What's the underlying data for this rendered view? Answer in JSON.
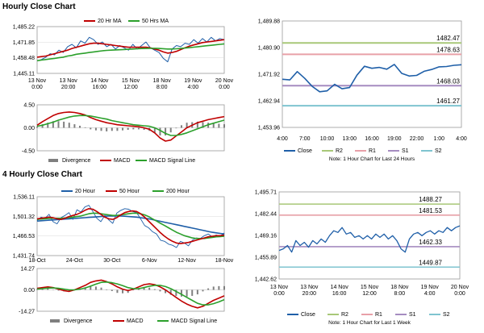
{
  "sections": {
    "hourly_title": "Hourly Close Chart",
    "four_hourly_title": "4 Hourly Close Chart"
  },
  "chart_data": [
    {
      "id": "hourly_price",
      "type": "line",
      "y_ticks": [
        "1,485.22",
        "1,471.85",
        "1,458.48",
        "1,445.11"
      ],
      "ylim": [
        1445.11,
        1485.22
      ],
      "x_ticks": [
        [
          "13 Nov",
          "0:00"
        ],
        [
          "13 Nov",
          "20:00"
        ],
        [
          "14 Nov",
          "16:00"
        ],
        [
          "15 Nov",
          "12:00"
        ],
        [
          "18 Nov",
          "8:00"
        ],
        [
          "19 Nov",
          "4:00"
        ],
        [
          "20 Nov",
          "0:00"
        ]
      ],
      "legend": [
        "20 Hr MA",
        "50 Hrs MA"
      ],
      "colors": {
        "close": "#1f5fa8",
        "ma20": "#c00000",
        "ma50": "#2ca02c"
      },
      "series": [
        {
          "name": "Close",
          "values": [
            1456,
            1457,
            1459,
            1462,
            1461,
            1465,
            1463,
            1468,
            1470,
            1467,
            1473,
            1471,
            1476,
            1474,
            1470,
            1472,
            1468,
            1470,
            1466,
            1469,
            1467,
            1465,
            1470,
            1466,
            1469,
            1472,
            1467,
            1465,
            1463,
            1458,
            1455,
            1466,
            1469,
            1468,
            1471,
            1470,
            1474,
            1471,
            1475,
            1472,
            1476,
            1473,
            1475,
            1474
          ]
        },
        {
          "name": "20 Hr MA",
          "values": [
            1459,
            1459.5,
            1460,
            1461,
            1462,
            1463,
            1464,
            1465,
            1466.5,
            1467.5,
            1468.5,
            1469.5,
            1470.5,
            1471,
            1471,
            1470.5,
            1470,
            1469.5,
            1469,
            1468.5,
            1468,
            1467.5,
            1467.5,
            1467.5,
            1467.5,
            1467.5,
            1467,
            1466,
            1465,
            1463.5,
            1462.5,
            1463,
            1464,
            1465.5,
            1467,
            1468.5,
            1469.5,
            1470.5,
            1471.5,
            1472,
            1472.5,
            1473,
            1473.5,
            1474
          ]
        },
        {
          "name": "50 Hrs MA",
          "values": [
            1456,
            1456.5,
            1457,
            1457.5,
            1458,
            1458.5,
            1459,
            1460,
            1460.5,
            1461.5,
            1462,
            1462.5,
            1463,
            1463.5,
            1464,
            1464.5,
            1464.8,
            1465,
            1465.2,
            1465.4,
            1465.6,
            1465.8,
            1466,
            1466.2,
            1466.4,
            1466.5,
            1466.6,
            1466.6,
            1466.5,
            1466.3,
            1466,
            1466,
            1466.2,
            1466.5,
            1466.8,
            1467.2,
            1467.6,
            1468,
            1468.4,
            1468.8,
            1469.2,
            1469.6,
            1470,
            1470.4
          ]
        }
      ]
    },
    {
      "id": "hourly_macd",
      "type": "line",
      "y_ticks": [
        "4.50",
        "0.00",
        "-4.50"
      ],
      "ylim": [
        -4.5,
        4.5
      ],
      "legend": [
        "Divergence",
        "MACD",
        "MACD Signal Line"
      ],
      "colors": {
        "divergence": "#7f7f7f",
        "macd": "#c00000",
        "signal": "#2ca02c"
      },
      "series": [
        {
          "name": "MACD",
          "values": [
            0.5,
            1.2,
            1.8,
            2.4,
            2.8,
            3.0,
            3.1,
            3.0,
            2.8,
            2.5,
            2.0,
            1.6,
            1.3,
            1.0,
            0.8,
            0.6,
            0.5,
            0.4,
            0.3,
            0.2,
            0.0,
            -0.3,
            -1.0,
            -2.0,
            -2.6,
            -2.4,
            -1.6,
            -0.8,
            0.0,
            0.5,
            1.0,
            1.3,
            1.6,
            1.8,
            2.0,
            2.2
          ]
        },
        {
          "name": "MACD Signal Line",
          "values": [
            0.3,
            0.5,
            0.8,
            1.1,
            1.5,
            1.8,
            2.1,
            2.3,
            2.4,
            2.4,
            2.3,
            2.1,
            1.9,
            1.7,
            1.4,
            1.2,
            1.0,
            0.8,
            0.6,
            0.5,
            0.4,
            0.3,
            0.0,
            -0.5,
            -1.1,
            -1.5,
            -1.5,
            -1.3,
            -1.0,
            -0.6,
            -0.2,
            0.2,
            0.6,
            0.9,
            1.2,
            1.5
          ]
        }
      ]
    },
    {
      "id": "hourly_24h",
      "type": "line",
      "y_ticks": [
        "1,489.88",
        "1,480.90",
        "1,471.92",
        "1,462.94",
        "1,453.96"
      ],
      "ylim": [
        1453.96,
        1489.88
      ],
      "x_ticks": [
        "4:00",
        "7:00",
        "10:00",
        "13:00",
        "16:00",
        "19:00",
        "22:00",
        "1:00",
        "4:00"
      ],
      "levels": [
        {
          "name": "R2",
          "value": 1482.47,
          "label": "1482.47",
          "color": "#a8c878"
        },
        {
          "name": "R1",
          "value": 1478.63,
          "label": "1478.63",
          "color": "#e8a0a8"
        },
        {
          "name": "S1",
          "value": 1468.03,
          "label": "1468.03",
          "color": "#a58cc0"
        },
        {
          "name": "S2",
          "value": 1461.27,
          "label": "1461.27",
          "color": "#7fc4d0"
        }
      ],
      "legend": [
        "Close",
        "R2",
        "R1",
        "S1",
        "S2"
      ],
      "note": "Note: 1 Hour Chart for Last 24 Hours",
      "series": [
        {
          "name": "Close",
          "values": [
            1470.2,
            1470.0,
            1472.8,
            1470.5,
            1467.8,
            1466.0,
            1466.3,
            1468.5,
            1467.0,
            1467.4,
            1471.6,
            1474.6,
            1473.9,
            1474.2,
            1473.6,
            1475.2,
            1472.2,
            1471.3,
            1471.5,
            1472.9,
            1473.5,
            1474.4,
            1474.5,
            1474.9,
            1475.1
          ]
        }
      ]
    },
    {
      "id": "four_hourly_price",
      "type": "line",
      "y_ticks": [
        "1,536.11",
        "1,501.32",
        "1,466.53",
        "1,431.74"
      ],
      "ylim": [
        1431.74,
        1536.11
      ],
      "x_ticks": [
        "18-Oct",
        "24-Oct",
        "30-Oct",
        "6-Nov",
        "12-Nov",
        "18-Nov"
      ],
      "legend": [
        "20 Hour",
        "50 Hour",
        "200 Hour"
      ],
      "colors": {
        "close": "#1f5fa8",
        "h20": "#c00000",
        "h50": "#2ca02c",
        "h200": "#1f5fa8"
      },
      "series": [
        {
          "name": "Close",
          "values": [
            1494,
            1500,
            1498,
            1505,
            1492,
            1488,
            1499,
            1503,
            1508,
            1496,
            1513,
            1509,
            1518,
            1521,
            1510,
            1498,
            1492,
            1503,
            1495,
            1489,
            1507,
            1512,
            1515,
            1514,
            1510,
            1508,
            1497,
            1485,
            1481,
            1474,
            1470,
            1459,
            1457,
            1452,
            1450,
            1446,
            1457,
            1454,
            1449,
            1459,
            1463,
            1462,
            1467,
            1470,
            1465,
            1468,
            1466,
            1472
          ]
        },
        {
          "name": "20 Hour",
          "values": [
            1497,
            1498,
            1499,
            1500,
            1499,
            1497,
            1496,
            1498,
            1501,
            1503,
            1505,
            1508,
            1512,
            1515,
            1514,
            1510,
            1505,
            1500,
            1497,
            1496,
            1499,
            1504,
            1508,
            1510,
            1511,
            1510,
            1506,
            1500,
            1493,
            1486,
            1479,
            1472,
            1466,
            1461,
            1457,
            1454,
            1453,
            1454,
            1455,
            1457,
            1459,
            1461,
            1463,
            1465,
            1466,
            1467,
            1467,
            1468
          ]
        },
        {
          "name": "50 Hour",
          "values": [
            1496,
            1496.5,
            1497,
            1497.5,
            1498,
            1498,
            1498,
            1498.5,
            1499,
            1500,
            1501,
            1502,
            1504,
            1506,
            1507,
            1507,
            1506,
            1505,
            1504,
            1503,
            1503,
            1504,
            1505,
            1506,
            1507,
            1507,
            1506,
            1504,
            1501,
            1497,
            1493,
            1489,
            1485,
            1481,
            1477,
            1473,
            1470,
            1467,
            1465,
            1463,
            1462,
            1462,
            1462,
            1463,
            1464,
            1465,
            1465.5,
            1466
          ]
        },
        {
          "name": "200 Hour",
          "values": [
            1493,
            1493.5,
            1494,
            1494.5,
            1495,
            1495.5,
            1496,
            1496.5,
            1497,
            1497.5,
            1498,
            1498.5,
            1499,
            1499.5,
            1500,
            1500.5,
            1501,
            1501.5,
            1502,
            1502,
            1502,
            1502,
            1501.5,
            1501,
            1500.5,
            1500,
            1499,
            1498,
            1497,
            1495.5,
            1494,
            1492.5,
            1491,
            1489.5,
            1488,
            1486.5,
            1485,
            1483.5,
            1482,
            1480.5,
            1479,
            1477.5,
            1476,
            1474.5,
            1473,
            1472,
            1471,
            1470
          ]
        }
      ]
    },
    {
      "id": "four_hourly_macd",
      "type": "line",
      "y_ticks": [
        "14.27",
        "0.00",
        "-14.27"
      ],
      "ylim": [
        -14.27,
        14.27
      ],
      "legend": [
        "Divergence",
        "MACD",
        "MACD Signal Line"
      ],
      "colors": {
        "divergence": "#7f7f7f",
        "macd": "#c00000",
        "signal": "#2ca02c"
      },
      "series": [
        {
          "name": "MACD",
          "values": [
            1.0,
            1.5,
            2.0,
            1.5,
            0.5,
            -0.5,
            -1.0,
            0.0,
            1.5,
            3.0,
            5.0,
            6.0,
            6.5,
            5.5,
            4.0,
            2.0,
            0.5,
            -0.5,
            0.5,
            2.0,
            3.5,
            4.0,
            3.5,
            2.0,
            0.0,
            -2.5,
            -5.0,
            -7.5,
            -9.5,
            -11.0,
            -12.0,
            -11.0,
            -9.0,
            -7.0,
            -5.5,
            -4.0
          ]
        },
        {
          "name": "MACD Signal Line",
          "values": [
            0.5,
            0.8,
            1.2,
            1.3,
            1.0,
            0.5,
            0.0,
            0.0,
            0.5,
            1.3,
            2.5,
            3.8,
            5.0,
            5.2,
            4.8,
            4.0,
            2.8,
            1.5,
            0.8,
            0.8,
            1.5,
            2.5,
            3.0,
            3.0,
            2.2,
            0.8,
            -1.0,
            -3.0,
            -5.0,
            -7.0,
            -9.0,
            -10.0,
            -10.0,
            -9.2,
            -8.0,
            -6.5
          ]
        }
      ]
    },
    {
      "id": "weekly_1h",
      "type": "line",
      "y_ticks": [
        "1,495.71",
        "1,482.44",
        "1,469.16",
        "1,455.89",
        "1,442.62"
      ],
      "ylim": [
        1442.62,
        1495.71
      ],
      "x_ticks": [
        [
          "13 Nov",
          "0:00"
        ],
        [
          "13 Nov",
          "20:00"
        ],
        [
          "14 Nov",
          "16:00"
        ],
        [
          "15 Nov",
          "12:00"
        ],
        [
          "18 Nov",
          "8:00"
        ],
        [
          "19 Nov",
          "4:00"
        ],
        [
          "20 Nov",
          "0:00"
        ]
      ],
      "levels": [
        {
          "name": "R2",
          "value": 1488.27,
          "label": "1488.27",
          "color": "#a8c878"
        },
        {
          "name": "R1",
          "value": 1481.53,
          "label": "1481.53",
          "color": "#e8a0a8"
        },
        {
          "name": "S1",
          "value": 1462.33,
          "label": "1462.33",
          "color": "#a58cc0"
        },
        {
          "name": "S2",
          "value": 1449.87,
          "label": "1449.87",
          "color": "#7fc4d0"
        }
      ],
      "legend": [
        "Close",
        "R2",
        "R1",
        "S1",
        "S2"
      ],
      "note": "Note: 1 Hour Chart for Last 1 Week",
      "series": [
        {
          "name": "Close",
          "values": [
            1460,
            1461,
            1463,
            1459,
            1466,
            1463,
            1465,
            1462,
            1466,
            1464,
            1467,
            1465,
            1469,
            1472,
            1471,
            1474,
            1470,
            1471,
            1468,
            1469,
            1467,
            1469,
            1467,
            1470,
            1468,
            1470,
            1467,
            1469,
            1466,
            1461,
            1459,
            1467,
            1470,
            1471,
            1469,
            1471,
            1472,
            1470,
            1472,
            1471,
            1474,
            1472,
            1474,
            1475
          ]
        }
      ]
    }
  ]
}
